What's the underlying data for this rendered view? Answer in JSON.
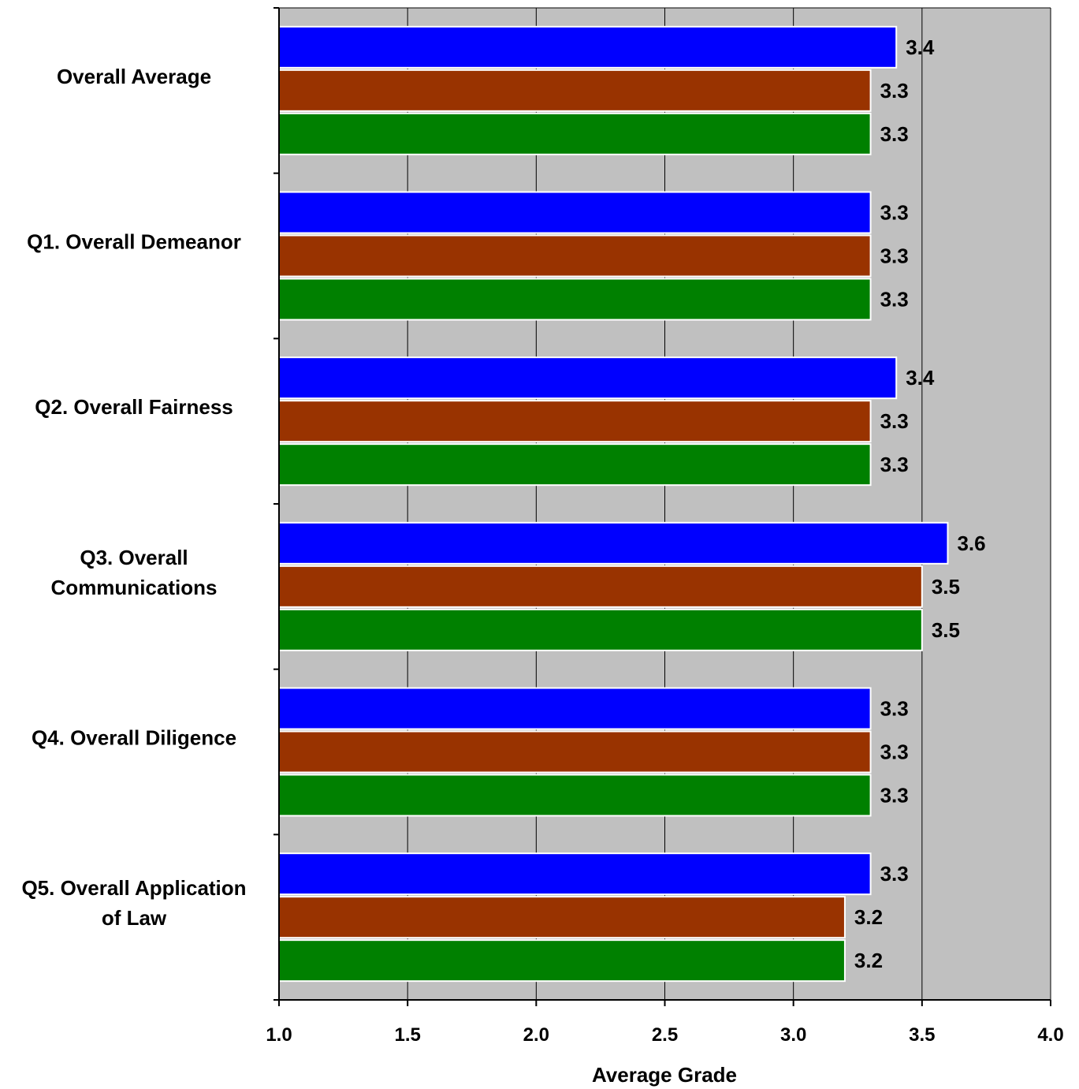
{
  "chart_data": {
    "type": "bar",
    "orientation": "horizontal",
    "categories": [
      [
        "Overall Average"
      ],
      [
        "Q1. Overall Demeanor"
      ],
      [
        "Q2. Overall Fairness"
      ],
      [
        "Q3. Overall",
        "Communications"
      ],
      [
        "Q4. Overall Diligence"
      ],
      [
        "Q5. Overall Application",
        "of Law"
      ]
    ],
    "series": [
      {
        "color": "#0000ff",
        "values": [
          3.4,
          3.3,
          3.4,
          3.6,
          3.3,
          3.3
        ]
      },
      {
        "color": "#993300",
        "values": [
          3.3,
          3.3,
          3.3,
          3.5,
          3.3,
          3.2
        ]
      },
      {
        "color": "#008000",
        "values": [
          3.3,
          3.3,
          3.3,
          3.5,
          3.3,
          3.2
        ]
      }
    ],
    "value_labels": [
      [
        "3.4",
        "3.3",
        "3.4",
        "3.6",
        "3.3",
        "3.3"
      ],
      [
        "3.3",
        "3.3",
        "3.3",
        "3.5",
        "3.3",
        "3.2"
      ],
      [
        "3.3",
        "3.3",
        "3.3",
        "3.5",
        "3.3",
        "3.2"
      ]
    ],
    "xticks": [
      "1.0",
      "1.5",
      "2.0",
      "2.5",
      "3.0",
      "3.5",
      "4.0"
    ],
    "xlim": [
      1.0,
      4.0
    ],
    "xlabel": "Average Grade",
    "grid": "vertical",
    "plot_background": "#c0c0c0",
    "legend": "none"
  }
}
